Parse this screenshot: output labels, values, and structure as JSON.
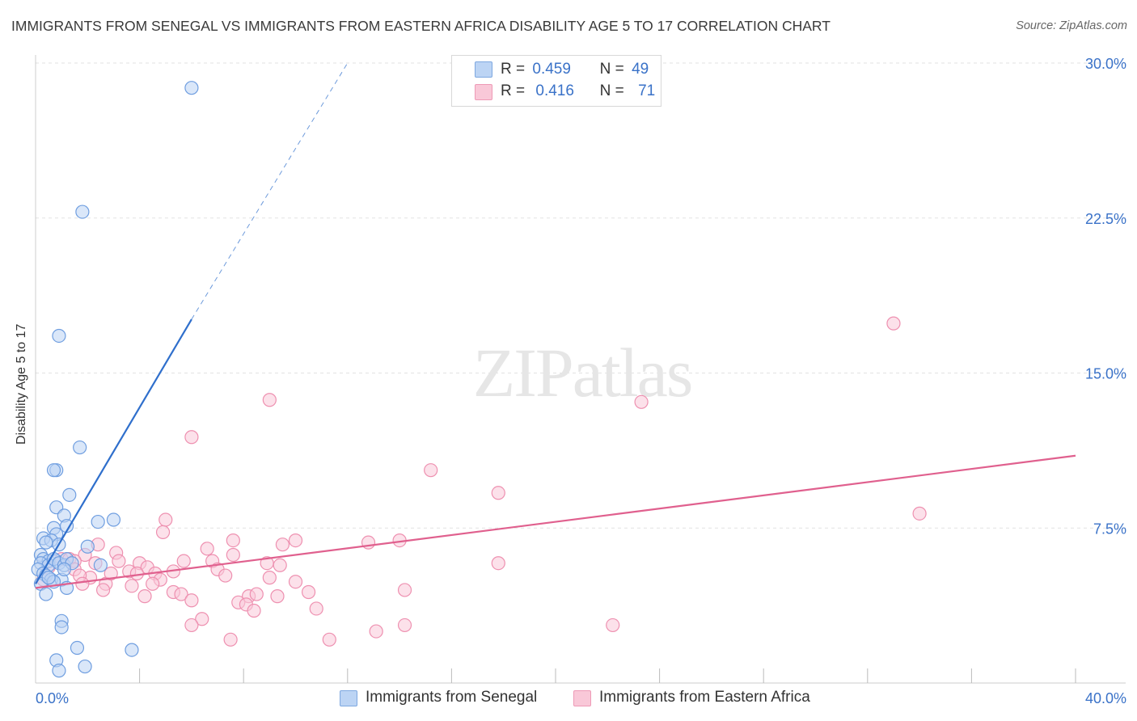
{
  "title": "IMMIGRANTS FROM SENEGAL VS IMMIGRANTS FROM EASTERN AFRICA DISABILITY AGE 5 TO 17 CORRELATION CHART",
  "source": "Source: ZipAtlas.com",
  "watermark": "ZIPatlas",
  "legend_top": {
    "r_label": "R =",
    "n_label": "N =",
    "rows": [
      {
        "r": "0.459",
        "n": "49"
      },
      {
        "r": "0.416",
        "n": "71"
      }
    ]
  },
  "legend_bottom": [
    "Immigrants from Senegal",
    "Immigrants from Eastern Africa"
  ],
  "colors": {
    "blue_fill": "#bcd4f4",
    "blue_stroke": "#6f9ee0",
    "blue_line": "#2f6fcc",
    "pink_fill": "#f9c8d8",
    "pink_stroke": "#ee90b0",
    "pink_line": "#e0608e",
    "axis_text": "#3a72c8"
  },
  "chart_data": {
    "type": "scatter",
    "title": "IMMIGRANTS FROM SENEGAL VS IMMIGRANTS FROM EASTERN AFRICA DISABILITY AGE 5 TO 17 CORRELATION CHART",
    "xlabel": "",
    "ylabel": "Disability Age 5 to 17",
    "xlim": [
      0,
      40
    ],
    "ylim": [
      0,
      30
    ],
    "x_tick_labels": [
      "0.0%",
      "40.0%"
    ],
    "y_ticks": [
      7.5,
      15.0,
      22.5,
      30.0
    ],
    "y_tick_labels": [
      "7.5%",
      "15.0%",
      "22.5%",
      "30.0%"
    ],
    "series": [
      {
        "name": "Immigrants from Senegal",
        "R": 0.459,
        "N": 49,
        "trend": {
          "x0": 0.0,
          "y0": 4.8,
          "x1": 6.0,
          "y1": 17.6,
          "dashed_to": {
            "x": 12.0,
            "y": 30.0
          }
        },
        "points": [
          [
            6.0,
            28.8
          ],
          [
            1.8,
            22.8
          ],
          [
            0.9,
            16.8
          ],
          [
            1.7,
            11.4
          ],
          [
            0.8,
            10.3
          ],
          [
            0.7,
            10.3
          ],
          [
            1.3,
            9.1
          ],
          [
            0.8,
            8.5
          ],
          [
            1.1,
            8.1
          ],
          [
            2.4,
            7.8
          ],
          [
            3.0,
            7.9
          ],
          [
            1.2,
            7.6
          ],
          [
            0.7,
            7.5
          ],
          [
            0.8,
            7.2
          ],
          [
            0.3,
            7.0
          ],
          [
            0.6,
            6.9
          ],
          [
            0.4,
            6.8
          ],
          [
            0.9,
            6.7
          ],
          [
            2.0,
            6.6
          ],
          [
            0.2,
            6.2
          ],
          [
            0.3,
            6.0
          ],
          [
            0.5,
            5.9
          ],
          [
            0.8,
            5.9
          ],
          [
            0.2,
            5.8
          ],
          [
            0.5,
            5.7
          ],
          [
            0.7,
            6.0
          ],
          [
            0.9,
            5.8
          ],
          [
            1.1,
            5.7
          ],
          [
            1.2,
            6.0
          ],
          [
            1.4,
            5.8
          ],
          [
            2.5,
            5.7
          ],
          [
            0.1,
            5.5
          ],
          [
            0.3,
            5.3
          ],
          [
            0.4,
            5.2
          ],
          [
            0.6,
            5.0
          ],
          [
            1.0,
            5.0
          ],
          [
            1.1,
            5.5
          ],
          [
            0.2,
            4.8
          ],
          [
            0.4,
            4.3
          ],
          [
            1.2,
            4.6
          ],
          [
            0.7,
            4.9
          ],
          [
            1.0,
            3.0
          ],
          [
            1.0,
            2.7
          ],
          [
            1.6,
            1.7
          ],
          [
            3.7,
            1.6
          ],
          [
            0.8,
            1.1
          ],
          [
            0.9,
            0.6
          ],
          [
            1.9,
            0.8
          ],
          [
            0.5,
            5.1
          ]
        ]
      },
      {
        "name": "Immigrants from Eastern Africa",
        "R": 0.416,
        "N": 71,
        "trend": {
          "x0": 0.0,
          "y0": 4.6,
          "x1": 40.0,
          "y1": 11.0
        },
        "points": [
          [
            33.0,
            17.4
          ],
          [
            9.0,
            13.7
          ],
          [
            23.3,
            13.6
          ],
          [
            6.0,
            11.9
          ],
          [
            15.2,
            10.3
          ],
          [
            17.8,
            9.2
          ],
          [
            34.0,
            8.2
          ],
          [
            5.0,
            7.9
          ],
          [
            4.9,
            7.3
          ],
          [
            7.6,
            6.9
          ],
          [
            10.0,
            6.9
          ],
          [
            9.5,
            6.7
          ],
          [
            12.8,
            6.8
          ],
          [
            14.0,
            6.9
          ],
          [
            2.4,
            6.7
          ],
          [
            6.6,
            6.5
          ],
          [
            3.1,
            6.3
          ],
          [
            1.9,
            6.2
          ],
          [
            7.6,
            6.2
          ],
          [
            1.0,
            6.0
          ],
          [
            1.3,
            6.0
          ],
          [
            1.5,
            5.9
          ],
          [
            3.2,
            5.9
          ],
          [
            4.0,
            5.8
          ],
          [
            5.7,
            5.9
          ],
          [
            6.8,
            5.9
          ],
          [
            8.9,
            5.8
          ],
          [
            9.4,
            5.7
          ],
          [
            17.8,
            5.8
          ],
          [
            2.3,
            5.8
          ],
          [
            4.3,
            5.6
          ],
          [
            0.5,
            5.6
          ],
          [
            1.5,
            5.5
          ],
          [
            3.6,
            5.4
          ],
          [
            4.6,
            5.3
          ],
          [
            5.3,
            5.4
          ],
          [
            7.0,
            5.5
          ],
          [
            3.9,
            5.3
          ],
          [
            2.1,
            5.1
          ],
          [
            1.7,
            5.2
          ],
          [
            7.3,
            5.2
          ],
          [
            9.0,
            5.1
          ],
          [
            0.3,
            5.0
          ],
          [
            1.8,
            4.8
          ],
          [
            2.7,
            4.8
          ],
          [
            3.7,
            4.7
          ],
          [
            4.8,
            5.0
          ],
          [
            10.0,
            4.9
          ],
          [
            4.5,
            4.8
          ],
          [
            2.6,
            4.5
          ],
          [
            5.3,
            4.4
          ],
          [
            5.6,
            4.3
          ],
          [
            6.0,
            4.0
          ],
          [
            4.2,
            4.2
          ],
          [
            8.2,
            4.2
          ],
          [
            8.5,
            4.3
          ],
          [
            10.5,
            4.4
          ],
          [
            14.2,
            4.5
          ],
          [
            7.8,
            3.9
          ],
          [
            8.1,
            3.8
          ],
          [
            8.4,
            3.5
          ],
          [
            10.8,
            3.6
          ],
          [
            6.4,
            3.1
          ],
          [
            6.0,
            2.8
          ],
          [
            7.5,
            2.1
          ],
          [
            11.3,
            2.1
          ],
          [
            13.1,
            2.5
          ],
          [
            14.2,
            2.8
          ],
          [
            22.2,
            2.8
          ],
          [
            9.3,
            4.2
          ],
          [
            2.9,
            5.3
          ]
        ]
      }
    ]
  }
}
